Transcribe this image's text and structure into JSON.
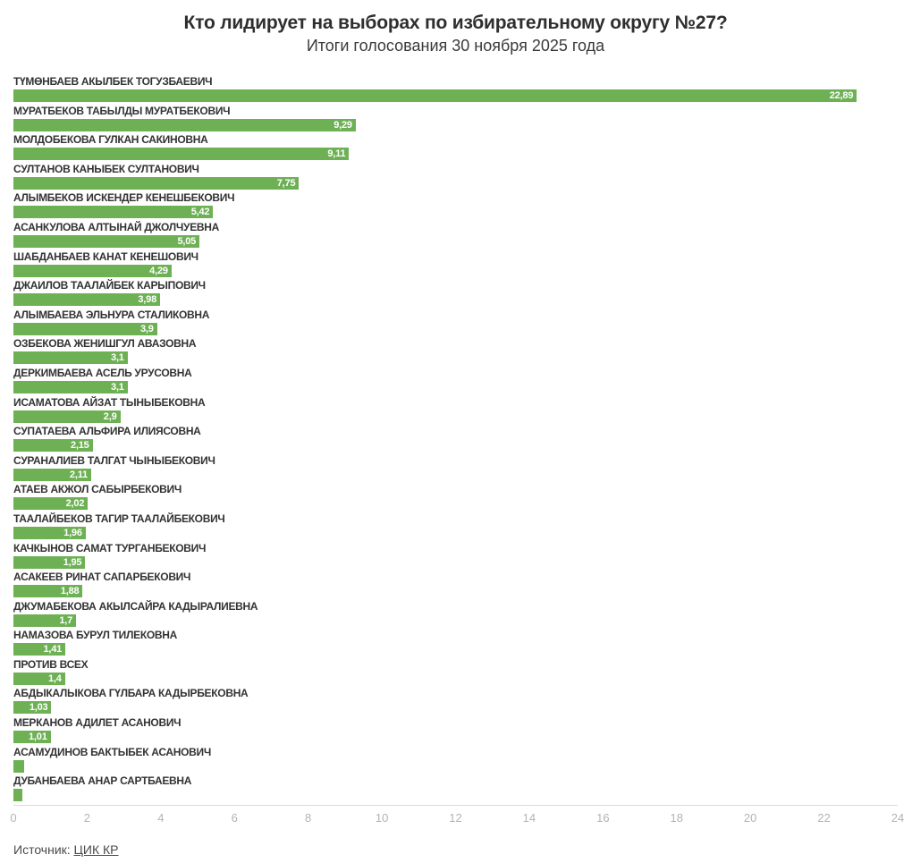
{
  "title": "Кто лидирует на выборах по избирательному округу №27?",
  "subtitle": "Итоги голосования 30 ноября 2025 года",
  "source": {
    "prefix": "Источник:",
    "link_label": "ЦИК КР"
  },
  "colors": {
    "bar": "#6eb155",
    "label_text": "#333333",
    "value_text": "#ffffff",
    "axis_line": "#dcdcdc",
    "tick_text": "#b3b3b3"
  },
  "chart_data": {
    "type": "bar",
    "orientation": "horizontal",
    "title": "Кто лидирует на выборах по избирательному округу №27?",
    "subtitle": "Итоги голосования 30 ноября 2025 года",
    "xlabel": "",
    "ylabel": "",
    "xlim": [
      0,
      24
    ],
    "ticks": [
      0,
      2,
      4,
      6,
      8,
      10,
      12,
      14,
      16,
      18,
      20,
      22,
      24
    ],
    "grid": false,
    "legend": false,
    "categories": [
      "ТҮМӨНБАЕВ АКЫЛБЕК ТОГУЗБАЕВИЧ",
      "МУРАТБЕКОВ ТАБЫЛДЫ МУРАТБЕКОВИЧ",
      "МОЛДОБЕКОВА ГУЛКАН САКИНОВНА",
      "СУЛТАНОВ КАНЫБЕК СУЛТАНОВИЧ",
      "АЛЫМБЕКОВ ИСКЕНДЕР КЕНЕШБЕКОВИЧ",
      "АСАНКУЛОВА АЛТЫНАЙ ДЖОЛЧУЕВНА",
      "ШАБДАНБАЕВ КАНАТ КЕНЕШОВИЧ",
      "ДЖАИЛОВ ТААЛАЙБЕК КАРЫПОВИЧ",
      "АЛЫМБАЕВА ЭЛЬНУРА СТАЛИКОВНА",
      "ОЗБЕКОВА ЖЕНИШГУЛ АВАЗОВНА",
      "ДЕРКИМБАЕВА АСЕЛЬ УРУСОВНА",
      "ИСАМАТОВА АЙЗАТ ТЫНЫБЕКОВНА",
      "СУПАТАЕВА АЛЬФИРА ИЛИЯСОВНА",
      "СУРАНАЛИЕВ ТАЛГАТ ЧЫНЫБЕКОВИЧ",
      "АТАЕВ АКЖОЛ САБЫРБЕКОВИЧ",
      "ТААЛАЙБЕКОВ ТАГИР ТААЛАЙБЕКОВИЧ",
      "КАЧКЫНОВ САМАТ ТУРГАНБЕКОВИЧ",
      "АСАКЕЕВ РИНАТ САПАРБЕКОВИЧ",
      "ДЖУМАБЕКОВА АКЫЛСАЙРА КАДЫРАЛИЕВНА",
      "НАМАЗОВА БУРУЛ ТИЛЕКОВНА",
      "ПРОТИВ ВСЕХ",
      "АБДЫКАЛЫКОВА ГҮЛБАРА КАДЫРБЕКОВНА",
      "МЕРКАНОВ АДИЛЕТ АСАНОВИЧ",
      "АСАМУДИНОВ БАКТЫБЕК АСАНОВИЧ",
      "ДУБАНБАЕВА АНАР САРТБАЕВНА"
    ],
    "values": [
      22.89,
      9.29,
      9.11,
      7.75,
      5.42,
      5.05,
      4.29,
      3.98,
      3.9,
      3.1,
      3.1,
      2.9,
      2.15,
      2.11,
      2.02,
      1.96,
      1.95,
      1.88,
      1.7,
      1.41,
      1.4,
      1.03,
      1.01,
      0.3,
      0.24
    ],
    "value_labels": [
      "22,89",
      "9,29",
      "9,11",
      "7,75",
      "5,42",
      "5,05",
      "4,29",
      "3,98",
      "3,9",
      "3,1",
      "3,1",
      "2,9",
      "2,15",
      "2,11",
      "2,02",
      "1,96",
      "1,95",
      "1,88",
      "1,7",
      "1,41",
      "1,4",
      "1,03",
      "1,01",
      "",
      ""
    ]
  }
}
